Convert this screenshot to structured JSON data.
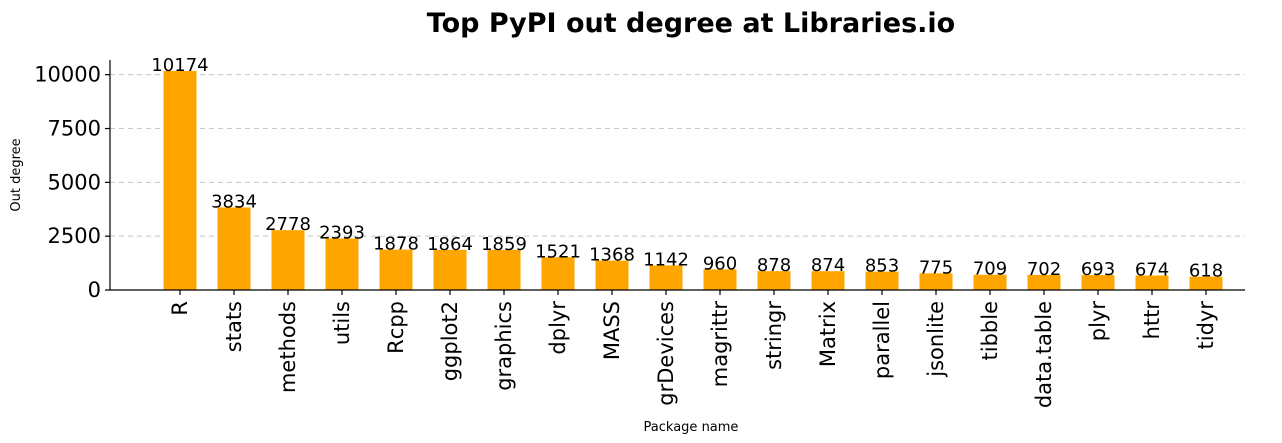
{
  "chart_data": {
    "type": "bar",
    "title": "Top PyPI out degree at Libraries.io",
    "xlabel": "Package name",
    "ylabel": "Out degree",
    "categories": [
      "R",
      "stats",
      "methods",
      "utils",
      "Rcpp",
      "ggplot2",
      "graphics",
      "dplyr",
      "MASS",
      "grDevices",
      "magrittr",
      "stringr",
      "Matrix",
      "parallel",
      "jsonlite",
      "tibble",
      "data.table",
      "plyr",
      "httr",
      "tidyr"
    ],
    "values": [
      10174,
      3834,
      2778,
      2393,
      1878,
      1864,
      1859,
      1521,
      1368,
      1142,
      960,
      878,
      874,
      853,
      775,
      709,
      702,
      693,
      674,
      618
    ],
    "yticks": [
      0,
      2500,
      5000,
      7500,
      10000
    ],
    "ylim": [
      0,
      10682
    ],
    "grid": "y-dashed",
    "bar_color": "#FFA500"
  }
}
